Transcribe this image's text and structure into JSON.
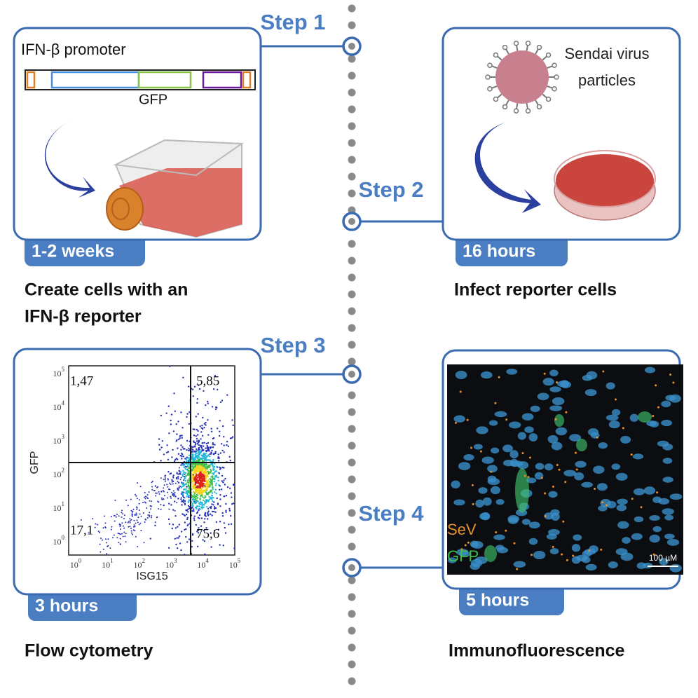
{
  "steps": [
    {
      "label": "Step 1",
      "duration": "1-2 weeks",
      "caption": [
        "Create cells with an",
        "IFN-β reporter"
      ],
      "promoter_label": "IFN-β promoter",
      "gene_label": "GFP"
    },
    {
      "label": "Step 2",
      "duration": "16 hours",
      "caption": [
        "Infect reporter cells"
      ],
      "virus_label": [
        "Sendai virus",
        "particles"
      ]
    },
    {
      "label": "Step 3",
      "duration": "3 hours",
      "caption": [
        "Flow cytometry"
      ],
      "plot": {
        "y_label": "GFP",
        "x_label": "ISG15",
        "tick_base": "10",
        "tick_exponents": [
          "0",
          "1",
          "2",
          "3",
          "4",
          "5"
        ],
        "quadrants": [
          "1,47",
          "5,85",
          "17,1",
          "75,6"
        ]
      }
    },
    {
      "label": "Step 4",
      "duration": "5 hours",
      "caption": [
        "Immunofluorescence"
      ],
      "image_labels": [
        "SeV",
        "GFP"
      ],
      "scale_bar": "100 µM"
    }
  ]
}
